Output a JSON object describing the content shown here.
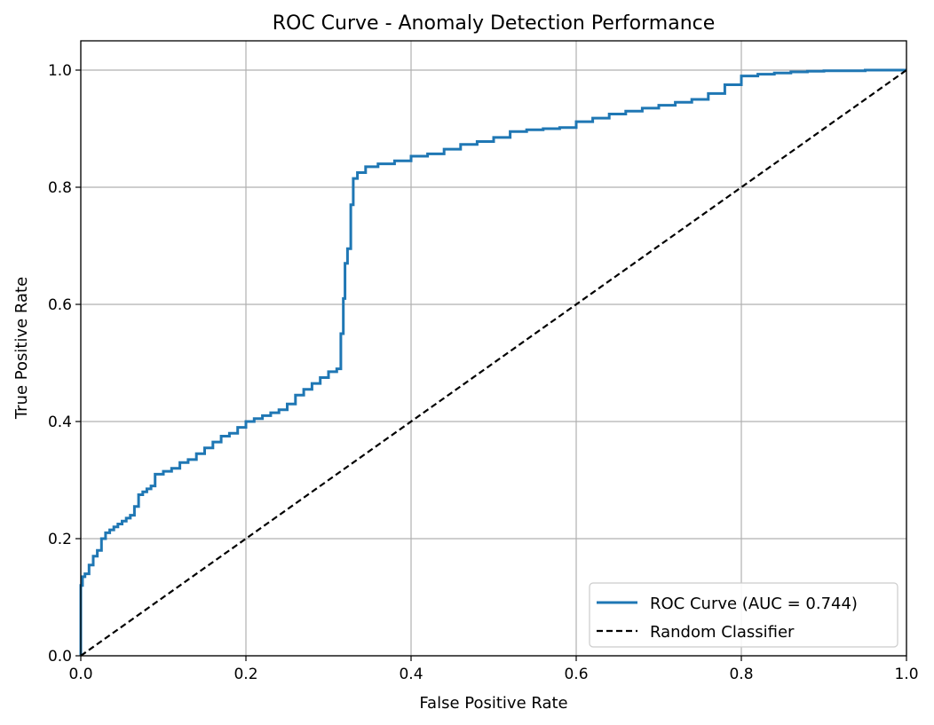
{
  "chart_data": {
    "type": "line",
    "title": "ROC Curve - Anomaly Detection Performance",
    "xlabel": "False Positive Rate",
    "ylabel": "True Positive Rate",
    "xlim": [
      0,
      1
    ],
    "ylim": [
      0,
      1.05
    ],
    "x_ticks": [
      0.0,
      0.2,
      0.4,
      0.6,
      0.8,
      1.0
    ],
    "y_ticks": [
      0.0,
      0.2,
      0.4,
      0.6,
      0.8,
      1.0
    ],
    "x_tick_labels": [
      "0.0",
      "0.2",
      "0.4",
      "0.6",
      "0.8",
      "1.0"
    ],
    "y_tick_labels": [
      "0.0",
      "0.2",
      "0.4",
      "0.6",
      "0.8",
      "1.0"
    ],
    "grid": true,
    "legend_position": "lower-right",
    "series": [
      {
        "name": "ROC Curve (AUC = 0.744)",
        "color": "#1f77b4",
        "style": "solid",
        "x": [
          0.0,
          0.0,
          0.002,
          0.005,
          0.01,
          0.015,
          0.02,
          0.025,
          0.03,
          0.035,
          0.04,
          0.045,
          0.05,
          0.055,
          0.06,
          0.065,
          0.07,
          0.075,
          0.08,
          0.085,
          0.09,
          0.1,
          0.11,
          0.12,
          0.13,
          0.14,
          0.15,
          0.16,
          0.17,
          0.18,
          0.19,
          0.2,
          0.21,
          0.22,
          0.23,
          0.24,
          0.25,
          0.26,
          0.27,
          0.28,
          0.29,
          0.3,
          0.31,
          0.315,
          0.318,
          0.32,
          0.323,
          0.327,
          0.33,
          0.335,
          0.345,
          0.36,
          0.38,
          0.4,
          0.42,
          0.44,
          0.46,
          0.48,
          0.5,
          0.52,
          0.54,
          0.56,
          0.58,
          0.6,
          0.62,
          0.64,
          0.66,
          0.68,
          0.7,
          0.72,
          0.74,
          0.76,
          0.78,
          0.8,
          0.82,
          0.84,
          0.86,
          0.88,
          0.9,
          0.95,
          1.0
        ],
        "y": [
          0.0,
          0.12,
          0.135,
          0.14,
          0.155,
          0.17,
          0.18,
          0.2,
          0.21,
          0.215,
          0.22,
          0.225,
          0.23,
          0.235,
          0.24,
          0.255,
          0.275,
          0.28,
          0.285,
          0.29,
          0.31,
          0.315,
          0.32,
          0.33,
          0.335,
          0.345,
          0.355,
          0.365,
          0.375,
          0.38,
          0.39,
          0.4,
          0.405,
          0.41,
          0.415,
          0.42,
          0.43,
          0.445,
          0.455,
          0.465,
          0.475,
          0.485,
          0.49,
          0.55,
          0.61,
          0.67,
          0.695,
          0.77,
          0.815,
          0.825,
          0.835,
          0.84,
          0.845,
          0.853,
          0.857,
          0.865,
          0.873,
          0.878,
          0.885,
          0.895,
          0.898,
          0.9,
          0.902,
          0.912,
          0.918,
          0.925,
          0.93,
          0.935,
          0.94,
          0.945,
          0.95,
          0.96,
          0.975,
          0.99,
          0.993,
          0.995,
          0.997,
          0.998,
          0.999,
          1.0,
          1.0
        ]
      },
      {
        "name": "Random Classifier",
        "color": "#000000",
        "style": "dashed",
        "x": [
          0.0,
          1.0
        ],
        "y": [
          0.0,
          1.0
        ]
      }
    ]
  }
}
